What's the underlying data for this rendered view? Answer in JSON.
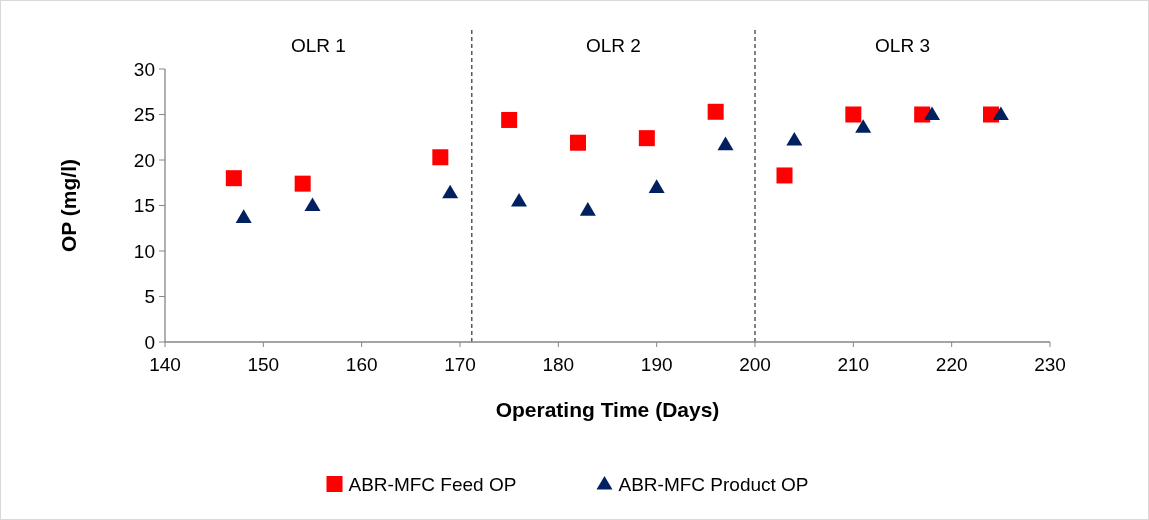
{
  "chart_data": {
    "type": "scatter",
    "xlabel": "Operating Time (Days)",
    "ylabel": "OP (mg/l)",
    "xlim": [
      140,
      230
    ],
    "xticks": [
      140,
      150,
      160,
      170,
      180,
      190,
      200,
      210,
      220,
      230
    ],
    "ylim": [
      0,
      30
    ],
    "yticks": [
      0,
      5,
      10,
      15,
      20,
      25,
      30
    ],
    "grid": false,
    "legend": "bottom",
    "series": [
      {
        "name": "ABR-MFC Feed OP",
        "color": "#ff0000",
        "marker": "square",
        "x": [
          147,
          154,
          168,
          175,
          182,
          189,
          196,
          203,
          210,
          217,
          224
        ],
        "values": [
          18,
          17.4,
          20.3,
          24.4,
          21.9,
          22.4,
          25.3,
          18.3,
          25,
          25,
          25
        ]
      },
      {
        "name": "ABR-MFC Product OP",
        "color": "#002060",
        "marker": "triangle",
        "x": [
          148,
          155,
          169,
          176,
          183,
          190,
          197,
          204,
          211,
          218,
          225
        ],
        "values": [
          13.7,
          15,
          16.4,
          15.5,
          14.5,
          17,
          21.7,
          22.2,
          23.6,
          25,
          25
        ]
      }
    ],
    "ref_lines": [
      {
        "axis": "x",
        "value": 171.2,
        "label": null,
        "line_style": "dashed",
        "color": "#404040"
      },
      {
        "axis": "x",
        "value": 200,
        "label": null,
        "line_style": "dashed",
        "color": "#404040"
      }
    ],
    "annotations": [
      "OLR 1",
      "OLR 2",
      "OLR 3"
    ]
  }
}
